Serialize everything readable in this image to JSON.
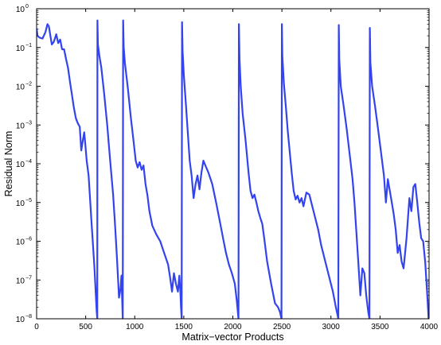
{
  "chart_data": {
    "type": "line",
    "title": "",
    "xlabel": "Matrix−vector Products",
    "ylabel": "Residual Norm",
    "xlim": [
      0,
      4000
    ],
    "ylim": [
      1e-08,
      1
    ],
    "yscale": "log",
    "grid": false,
    "line_color": "#3344ee",
    "x_ticks": [
      0,
      500,
      1000,
      1500,
      2000,
      2500,
      3000,
      3500,
      4000
    ],
    "x_tick_labels": [
      "0",
      "500",
      "1000",
      "1500",
      "2000",
      "2500",
      "3000",
      "3500",
      "4000"
    ],
    "y_ticks": [
      1e-08,
      1e-07,
      1e-06,
      1e-05,
      0.0001,
      0.001,
      0.01,
      0.1,
      1
    ],
    "y_tick_bases": [
      "10",
      "10",
      "10",
      "10",
      "10",
      "10",
      "10",
      "10",
      "10"
    ],
    "y_tick_exponents": [
      "−8",
      "−7",
      "−6",
      "−5",
      "−4",
      "−3",
      "−2",
      "−1",
      "0"
    ],
    "series": [
      {
        "x": [
          0,
          10,
          30,
          60,
          90,
          110,
          125,
          140,
          155,
          175,
          200,
          220,
          240,
          260,
          280,
          300,
          320,
          340,
          360,
          380,
          400,
          420,
          440,
          455,
          470,
          485,
          495,
          510,
          530,
          560,
          590,
          612,
          618,
          620,
          625,
          640,
          660,
          690,
          720,
          750,
          780,
          800,
          820,
          840,
          855,
          865,
          878,
          882,
          888,
          900,
          930,
          960,
          990,
          1010,
          1030,
          1050,
          1070,
          1090,
          1110,
          1130,
          1150,
          1180,
          1220,
          1260,
          1300,
          1340,
          1360,
          1380,
          1400,
          1420,
          1440,
          1455,
          1465,
          1472,
          1478,
          1482,
          1488,
          1500,
          1520,
          1540,
          1560,
          1580,
          1600,
          1620,
          1640,
          1660,
          1680,
          1700,
          1720,
          1750,
          1790,
          1830,
          1870,
          1900,
          1930,
          1960,
          1990,
          2020,
          2040,
          2058,
          2062,
          2068,
          2080,
          2100,
          2130,
          2160,
          2180,
          2200,
          2220,
          2240,
          2260,
          2280,
          2300,
          2320,
          2350,
          2390,
          2430,
          2460,
          2480,
          2496,
          2500,
          2505,
          2520,
          2540,
          2560,
          2580,
          2600,
          2620,
          2640,
          2660,
          2680,
          2700,
          2720,
          2750,
          2780,
          2810,
          2840,
          2870,
          2900,
          2930,
          2960,
          2990,
          3020,
          3050,
          3075,
          3080,
          3085,
          3100,
          3130,
          3160,
          3190,
          3220,
          3240,
          3260,
          3280,
          3300,
          3320,
          3340,
          3360,
          3380,
          3392,
          3396,
          3402,
          3420,
          3450,
          3480,
          3510,
          3540,
          3560,
          3580,
          3600,
          3620,
          3640,
          3660,
          3680,
          3700,
          3720,
          3740,
          3770,
          3800,
          3820,
          3840,
          3860,
          3880,
          3900,
          3920,
          3940,
          3960,
          3980,
          3995
        ],
        "y": [
          0.3,
          0.2,
          0.18,
          0.17,
          0.25,
          0.4,
          0.35,
          0.2,
          0.12,
          0.14,
          0.22,
          0.13,
          0.16,
          0.09,
          0.09,
          0.05,
          0.03,
          0.013,
          0.006,
          0.0028,
          0.0015,
          0.0011,
          0.0009,
          0.00022,
          0.00038,
          0.00065,
          0.00035,
          0.00012,
          5e-05,
          3e-06,
          2e-07,
          1.6e-08,
          1e-08,
          0.5,
          0.12,
          0.06,
          0.03,
          0.006,
          0.001,
          0.00012,
          1.6e-05,
          2.5e-06,
          3.2e-07,
          3.5e-08,
          6e-08,
          1.3e-07,
          1e-08,
          0.5,
          0.1,
          0.04,
          0.009,
          0.0016,
          0.00035,
          0.00012,
          8e-05,
          0.00011,
          7e-05,
          9e-05,
          3e-05,
          1.5e-05,
          6e-06,
          2.5e-06,
          1.5e-06,
          1e-06,
          5e-07,
          2.5e-07,
          1.2e-07,
          5e-08,
          1.5e-07,
          8e-08,
          5e-08,
          1.3e-07,
          5e-08,
          2e-08,
          1e-08,
          0.45,
          0.08,
          0.02,
          0.004,
          0.0007,
          0.00012,
          5e-05,
          1.3e-05,
          3e-05,
          5e-05,
          2.2e-05,
          6e-05,
          0.00012,
          9e-05,
          6e-05,
          3e-05,
          1e-05,
          3e-06,
          1.2e-06,
          5e-07,
          2.5e-07,
          1.5e-07,
          8e-08,
          3e-08,
          1e-08,
          0.4,
          0.05,
          0.01,
          0.002,
          0.0004,
          6e-05,
          2e-05,
          1.3e-05,
          1.6e-05,
          1e-05,
          6e-06,
          4e-06,
          2.8e-06,
          1.2e-06,
          3e-07,
          8e-08,
          2.5e-08,
          2e-08,
          1.5e-08,
          1e-08,
          0.4,
          0.06,
          0.012,
          0.003,
          0.0007,
          0.0002,
          6e-05,
          2e-05,
          1.2e-05,
          1.5e-05,
          1e-05,
          1.3e-05,
          8e-06,
          1.8e-05,
          1.6e-05,
          8e-06,
          4e-06,
          2e-06,
          8e-07,
          4e-07,
          2e-07,
          1e-07,
          5e-08,
          2e-08,
          1e-08,
          0.38,
          0.05,
          0.01,
          0.003,
          0.0008,
          0.00018,
          4e-05,
          1e-05,
          1.6e-06,
          2.5e-07,
          4e-08,
          2e-07,
          1.5e-07,
          4e-08,
          1.5e-08,
          1e-08,
          0.32,
          0.04,
          0.01,
          0.003,
          0.0008,
          0.0002,
          5e-05,
          1e-05,
          4e-05,
          2e-05,
          1e-05,
          5e-06,
          2e-06,
          5e-07,
          8e-07,
          3e-07,
          2e-07,
          1.2e-06,
          1.3e-05,
          6e-06,
          2.5e-05,
          3e-05,
          1e-05,
          3e-06,
          1.2e-06,
          1e-06,
          3e-07,
          5e-08,
          1e-08
        ]
      }
    ]
  }
}
